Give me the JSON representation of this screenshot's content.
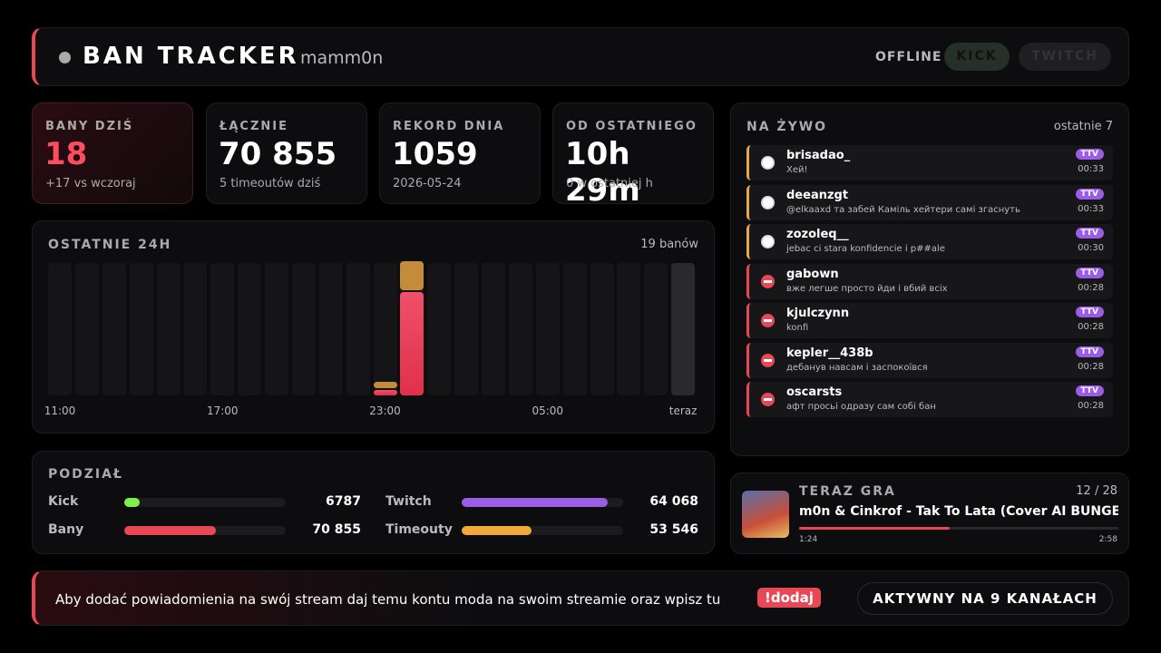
{
  "header": {
    "title": "BAN TRACKER",
    "user": "mamm0n",
    "status": "OFFLINE",
    "buttons": [
      "KICK",
      "TWITCH"
    ]
  },
  "stats": [
    {
      "label": "BANY DZIŚ",
      "value": "18",
      "sub": "+17 vs wczoraj",
      "accent": true
    },
    {
      "label": "ŁĄCZNIE",
      "value": "70 855",
      "sub": "5 timeoutów dziś",
      "accent": false
    },
    {
      "label": "REKORD DNIA",
      "value": "1059",
      "sub": "2026-05-24",
      "accent": false
    },
    {
      "label": "OD OSTATNIEGO",
      "value": "10h 29m",
      "sub": "0 w ostatniej h",
      "accent": false
    }
  ],
  "last24h": {
    "title": "OSTATNIE 24H",
    "summary": "19 banów",
    "hours": [
      "11:00",
      null,
      null,
      null,
      null,
      null,
      "17:00",
      null,
      null,
      null,
      null,
      null,
      "23:00",
      null,
      null,
      null,
      null,
      null,
      "05:00",
      null,
      null,
      null,
      null,
      "teraz"
    ],
    "bans": [
      0,
      0,
      0,
      0,
      0,
      0,
      0,
      0,
      0,
      0,
      0,
      0,
      1,
      18,
      0,
      0,
      0,
      0,
      0,
      0,
      0,
      0,
      0,
      0
    ],
    "timeouts": [
      0,
      0,
      0,
      0,
      0,
      0,
      0,
      0,
      0,
      0,
      0,
      0,
      1,
      5,
      0,
      0,
      0,
      0,
      0,
      0,
      0,
      0,
      0,
      0
    ]
  },
  "breakdown": {
    "title": "PODZIAŁ",
    "groups": [
      [
        {
          "name": "Kick",
          "value": 6787,
          "label": "6787",
          "color": "#7df04a"
        },
        {
          "name": "Twitch",
          "value": 64068,
          "label": "64 068",
          "color": "#9b5de5"
        }
      ],
      [
        {
          "name": "Bany",
          "value": 70855,
          "label": "70 855",
          "color": "#e84855"
        },
        {
          "name": "Timeouty",
          "value": 53546,
          "label": "53 546",
          "color": "#f2a93b"
        }
      ]
    ]
  },
  "live": {
    "title": "NA ŻYWO",
    "summary": "ostatnie 7",
    "items": [
      {
        "kind": "timeout",
        "user": "brisadao_",
        "message": "Хей!",
        "badge": "TTV",
        "time": "00:33"
      },
      {
        "kind": "timeout",
        "user": "deeanzgt",
        "message": "@elkaaxd та забей Каміль хейтери самі згаснуть",
        "badge": "TTV",
        "time": "00:33"
      },
      {
        "kind": "timeout",
        "user": "zozoleq__",
        "message": "jebac ci stara konfidencie i p##ale",
        "badge": "TTV",
        "time": "00:30"
      },
      {
        "kind": "ban",
        "user": "gabown",
        "message": "вже легше просто йди і вбий всіх",
        "badge": "TTV",
        "time": "00:28"
      },
      {
        "kind": "ban",
        "user": "kjulczynn",
        "message": "konfi",
        "badge": "TTV",
        "time": "00:28"
      },
      {
        "kind": "ban",
        "user": "kepler__438b",
        "message": "дебанув навсам і заспокоївся",
        "badge": "TTV",
        "time": "00:28"
      },
      {
        "kind": "ban",
        "user": "oscarsts",
        "message": "афт просьі одразу сам собі бан",
        "badge": "TTV",
        "time": "00:28"
      }
    ]
  },
  "now_playing": {
    "title": "TERAZ GRA",
    "position": "12 / 28",
    "track": "m0n & Cinkrof - Tak To Lata (Cover AI BUNGE",
    "elapsed": "1:24",
    "duration": "2:58"
  },
  "footer": {
    "text": "Aby dodać powiadomienia na swój stream daj temu kontu moda na swoim streamie oraz wpisz tu",
    "command": "!dodaj",
    "status": "AKTYWNY NA 9 KANAŁACH"
  }
}
